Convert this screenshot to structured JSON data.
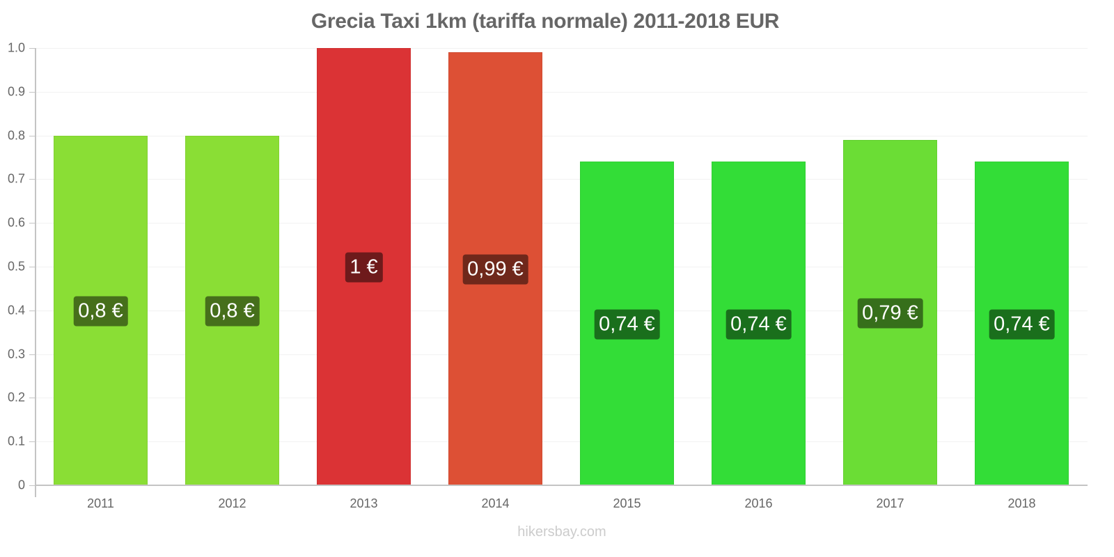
{
  "chart_data": {
    "type": "bar",
    "title": "Grecia Taxi 1km (tariffa normale) 2011-2018 EUR",
    "xlabel": "",
    "ylabel": "",
    "ylim": [
      0,
      1.0
    ],
    "grid": true,
    "legend": null,
    "categories": [
      "2011",
      "2012",
      "2013",
      "2014",
      "2015",
      "2016",
      "2017",
      "2018"
    ],
    "values": [
      0.8,
      0.8,
      1.0,
      0.99,
      0.74,
      0.74,
      0.79,
      0.74
    ],
    "data_labels": [
      "0,8 €",
      "0,8 €",
      "1 €",
      "0,99 €",
      "0,74 €",
      "0,74 €",
      "0,79 €",
      "0,74 €"
    ],
    "bar_colors": [
      "#8ade35",
      "#8ade35",
      "#db3335",
      "#dd5035",
      "#33dd37",
      "#33dd37",
      "#6bdd35",
      "#33dd37"
    ],
    "label_bg_colors": [
      "#466f1b",
      "#466f1b",
      "#6e1a1b",
      "#6f281b",
      "#1a6f1c",
      "#1a6f1c",
      "#366f1b",
      "#1a6f1c"
    ],
    "y_ticks": [
      "0",
      "0.1",
      "0.2",
      "0.3",
      "0.4",
      "0.5",
      "0.6",
      "0.7",
      "0.8",
      "0.9",
      "1.0"
    ],
    "y_tick_values": [
      0,
      0.1,
      0.2,
      0.3,
      0.4,
      0.5,
      0.6,
      0.7,
      0.8,
      0.9,
      1.0
    ]
  },
  "watermark": "hikersbay.com"
}
